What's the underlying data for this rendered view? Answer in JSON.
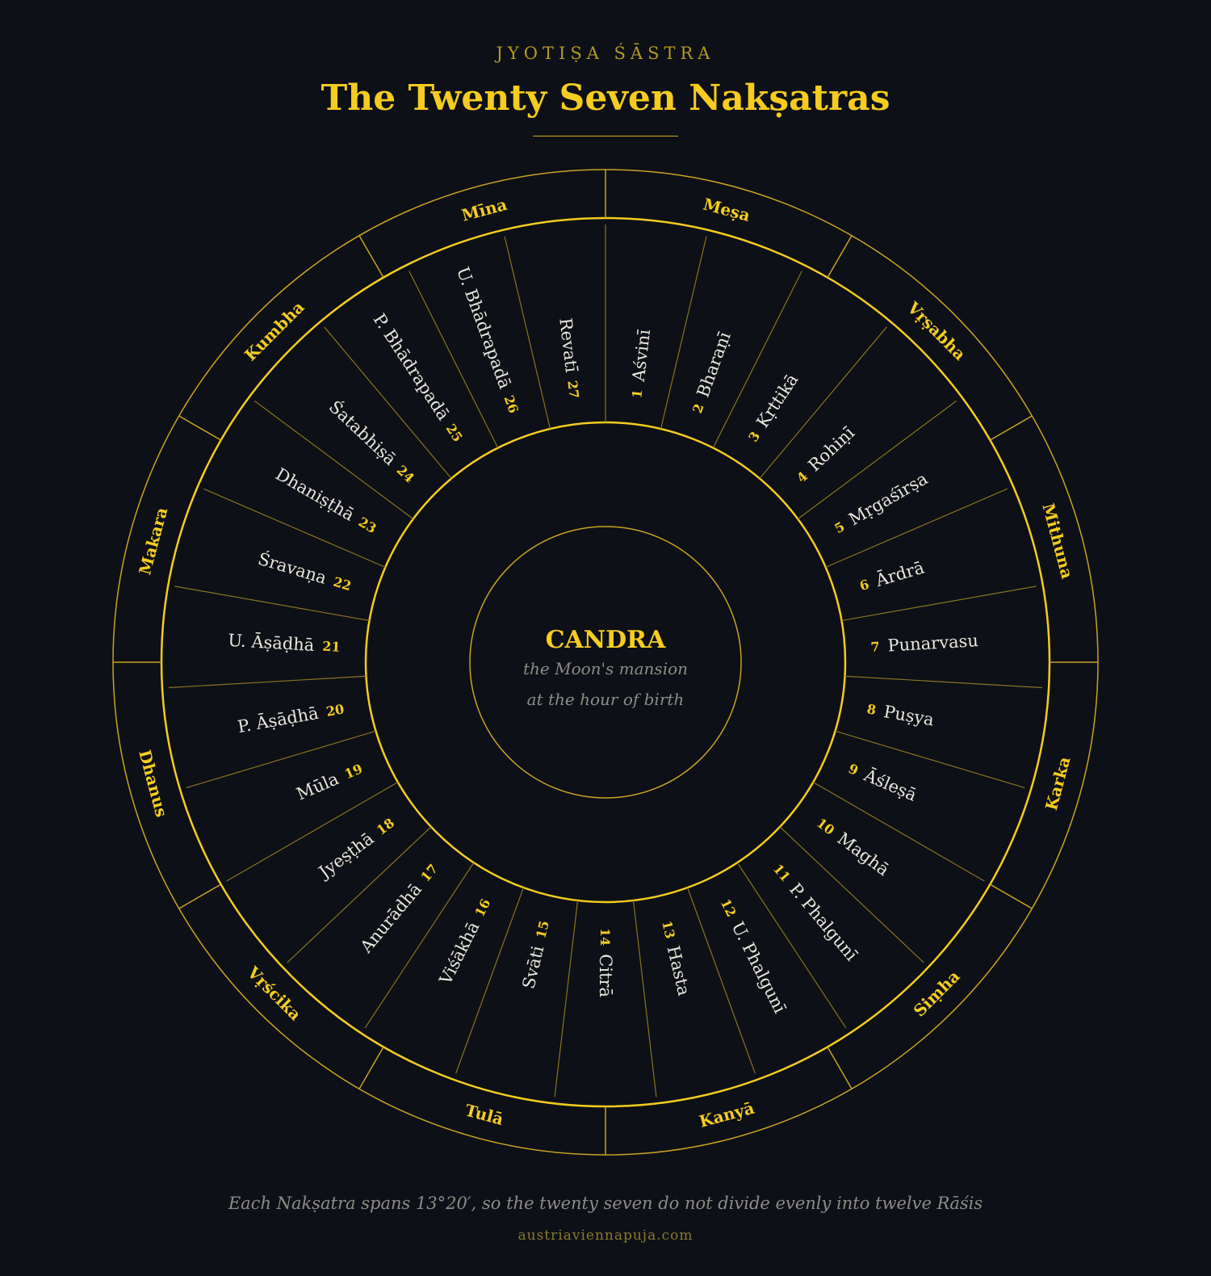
{
  "header": {
    "subtitle": "JYOTIṢA ŚĀSTRA",
    "title": "The Twenty Seven Nakṣatras"
  },
  "center": {
    "name": "CANDRA",
    "line1": "the Moon's mansion",
    "line2": "at the hour of birth"
  },
  "rasis": [
    "Meṣa",
    "Vṛṣabha",
    "Mithuna",
    "Karka",
    "Siṃha",
    "Kanyā",
    "Tulā",
    "Vṛścika",
    "Dhanus",
    "Makara",
    "Kumbha",
    "Mīna"
  ],
  "nakshatras": [
    {
      "num": "1",
      "name": "Aśvinī"
    },
    {
      "num": "2",
      "name": "Bharaṇī"
    },
    {
      "num": "3",
      "name": "Kṛttikā"
    },
    {
      "num": "4",
      "name": "Rohiṇī"
    },
    {
      "num": "5",
      "name": "Mṛgaśīrṣa"
    },
    {
      "num": "6",
      "name": "Ārdrā"
    },
    {
      "num": "7",
      "name": "Punarvasu"
    },
    {
      "num": "8",
      "name": "Puṣya"
    },
    {
      "num": "9",
      "name": "Āśleṣā"
    },
    {
      "num": "10",
      "name": "Maghā"
    },
    {
      "num": "11",
      "name": "P. Phalgunī"
    },
    {
      "num": "12",
      "name": "U. Phalgunī"
    },
    {
      "num": "13",
      "name": "Hasta"
    },
    {
      "num": "14",
      "name": "Citrā"
    },
    {
      "num": "15",
      "name": "Svāti"
    },
    {
      "num": "16",
      "name": "Viśākhā"
    },
    {
      "num": "17",
      "name": "Anurādhā"
    },
    {
      "num": "18",
      "name": "Jyeṣṭhā"
    },
    {
      "num": "19",
      "name": "Mūla"
    },
    {
      "num": "20",
      "name": "P. Āṣāḍhā"
    },
    {
      "num": "21",
      "name": "U. Āṣāḍhā"
    },
    {
      "num": "22",
      "name": "Śravaṇa"
    },
    {
      "num": "23",
      "name": "Dhaniṣṭhā"
    },
    {
      "num": "24",
      "name": "Śatabhiṣā"
    },
    {
      "num": "25",
      "name": "P. Bhādrapadā"
    },
    {
      "num": "26",
      "name": "U. Bhādrapadā"
    },
    {
      "num": "27",
      "name": "Revatī"
    }
  ],
  "colors": {
    "background": "#0d1016",
    "gold": "#f5cc1f",
    "gold_line": "#c9a322",
    "label": "#e9e6dc",
    "muted": "#8e8c86"
  },
  "footer": {
    "note": "Each Nakṣatra spans 13°20′, so the twenty seven do not divide evenly into twelve Rāśis",
    "site": "austriaviennapuja.com"
  }
}
